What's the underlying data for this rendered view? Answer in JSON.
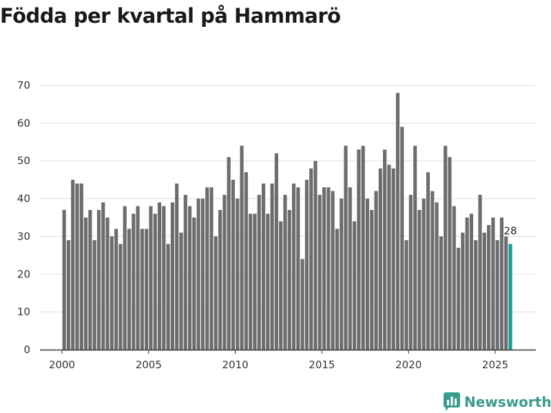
{
  "colors": {
    "bar": "#6d6d70",
    "highlight": "#12a090",
    "grid": "#dddddd",
    "axis": "#333333",
    "brand": "#3a9c8d"
  },
  "brand": {
    "name": "Newsworthy",
    "icon": "bar-chart-speech-icon"
  },
  "chart_data": {
    "type": "bar",
    "title": "Födda per kvartal på Hammarö",
    "xlabel": "",
    "ylabel": "",
    "ylim": [
      0,
      70
    ],
    "yticks": [
      "0",
      "10",
      "20",
      "30",
      "40",
      "50",
      "60",
      "70"
    ],
    "xticks": [
      "2000",
      "2005",
      "2010",
      "2015",
      "2020",
      "2025"
    ],
    "x_start_year": 2000,
    "periods_per_year": 4,
    "values": [
      37,
      29,
      45,
      44,
      44,
      35,
      37,
      29,
      37,
      39,
      35,
      30,
      32,
      28,
      38,
      32,
      36,
      38,
      32,
      32,
      38,
      36,
      39,
      38,
      28,
      39,
      44,
      31,
      41,
      38,
      35,
      40,
      40,
      43,
      43,
      30,
      37,
      41,
      51,
      45,
      40,
      54,
      47,
      36,
      36,
      41,
      44,
      36,
      44,
      52,
      34,
      41,
      37,
      44,
      43,
      24,
      45,
      48,
      50,
      41,
      43,
      43,
      42,
      32,
      40,
      54,
      43,
      34,
      53,
      54,
      40,
      37,
      42,
      48,
      53,
      49,
      48,
      68,
      59,
      29,
      41,
      54,
      37,
      40,
      47,
      42,
      39,
      30,
      54,
      51,
      38,
      27,
      31,
      35,
      36,
      29,
      41,
      31,
      33,
      35,
      29,
      35,
      30,
      28
    ],
    "highlight_index": 103,
    "highlight_label": "28"
  }
}
